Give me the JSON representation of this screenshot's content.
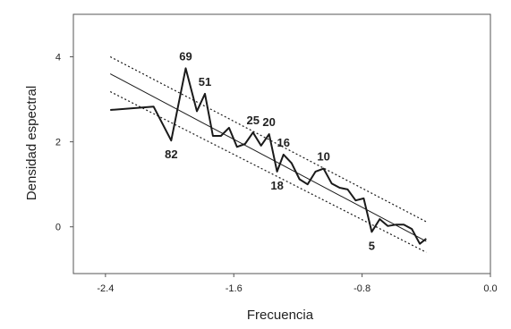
{
  "chart_data": {
    "type": "line",
    "title": "",
    "xlabel": "Frecuencia",
    "ylabel": "Densidad espectral",
    "xlim": [
      -2.6,
      0.0
    ],
    "ylim": [
      -1.1,
      5.0
    ],
    "xticks": [
      -2.4,
      -1.6,
      -0.8,
      0.0
    ],
    "xtick_labels": [
      "-2.4",
      "-1.6",
      "-0.8",
      "0.0"
    ],
    "yticks": [
      0,
      2,
      4
    ],
    "ytick_labels": [
      "0",
      "2",
      "4"
    ],
    "grid": false,
    "legend": "none",
    "series": [
      {
        "style": "solid-thick",
        "x": [
          -2.37,
          -2.1,
          -1.99,
          -1.9,
          -1.83,
          -1.78,
          -1.73,
          -1.68,
          -1.63,
          -1.58,
          -1.53,
          -1.48,
          -1.43,
          -1.38,
          -1.33,
          -1.29,
          -1.24,
          -1.19,
          -1.14,
          -1.09,
          -1.04,
          -0.99,
          -0.94,
          -0.89,
          -0.84,
          -0.79,
          -0.74,
          -0.69,
          -0.64,
          -0.59,
          -0.54,
          -0.49,
          -0.44,
          -0.4
        ],
        "y": [
          2.75,
          2.83,
          2.03,
          3.73,
          2.72,
          3.13,
          2.14,
          2.14,
          2.33,
          1.88,
          1.95,
          2.22,
          1.91,
          2.18,
          1.3,
          1.7,
          1.5,
          1.12,
          1.0,
          1.3,
          1.37,
          1.02,
          0.92,
          0.88,
          0.62,
          0.67,
          -0.12,
          0.18,
          0.02,
          0.05,
          0.05,
          -0.05,
          -0.4,
          -0.28
        ]
      },
      {
        "style": "regression-line",
        "x": [
          -2.37,
          -0.4
        ],
        "y": [
          3.6,
          -0.34
        ]
      },
      {
        "style": "dotted-band-upper",
        "x": [
          -2.37,
          -0.4
        ],
        "y": [
          4.0,
          0.12
        ]
      },
      {
        "style": "dotted-band-lower",
        "x": [
          -2.37,
          -0.4
        ],
        "y": [
          3.18,
          -0.6
        ]
      }
    ],
    "annotations": [
      {
        "text": "69",
        "x": -1.9,
        "y": 3.73,
        "anchor": "above"
      },
      {
        "text": "51",
        "x": -1.78,
        "y": 3.13,
        "anchor": "above"
      },
      {
        "text": "82",
        "x": -1.99,
        "y": 2.03,
        "anchor": "below"
      },
      {
        "text": "25",
        "x": -1.48,
        "y": 2.22,
        "anchor": "above"
      },
      {
        "text": "20",
        "x": -1.38,
        "y": 2.18,
        "anchor": "above"
      },
      {
        "text": "16",
        "x": -1.29,
        "y": 1.7,
        "anchor": "above"
      },
      {
        "text": "18",
        "x": -1.33,
        "y": 1.3,
        "anchor": "below"
      },
      {
        "text": "10",
        "x": -1.04,
        "y": 1.37,
        "anchor": "above"
      },
      {
        "text": "5",
        "x": -0.74,
        "y": -0.12,
        "anchor": "below"
      }
    ],
    "colors": {
      "line": "#1a1a1a",
      "axis": "#555555",
      "text": "#222222"
    }
  }
}
